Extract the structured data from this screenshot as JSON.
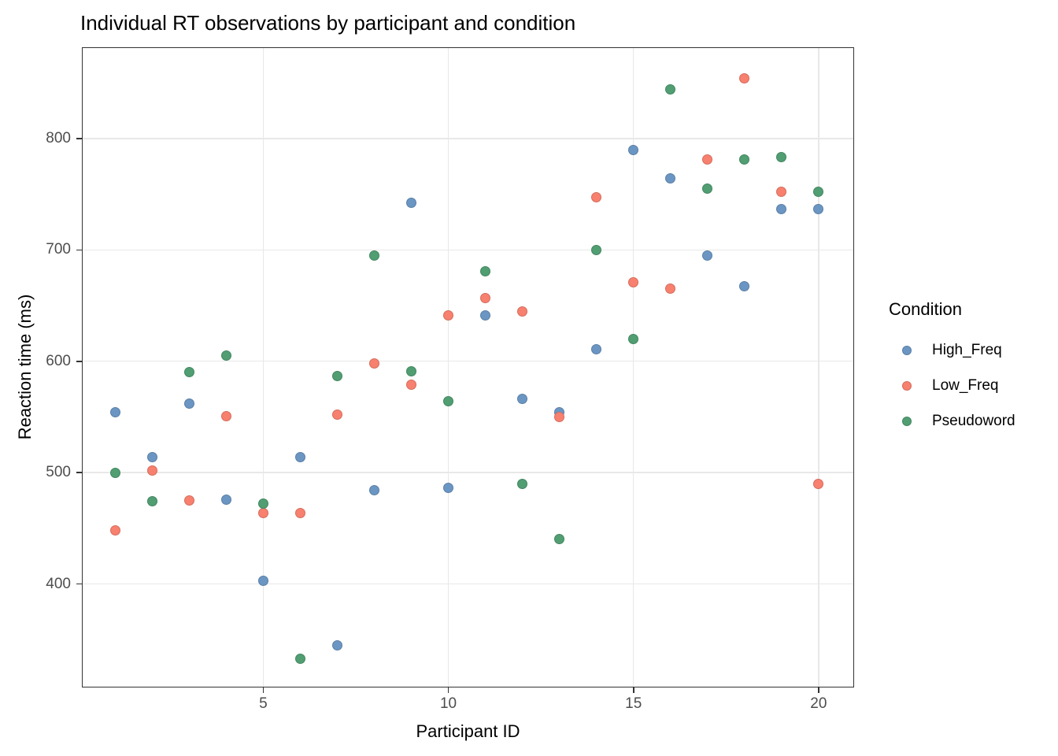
{
  "title": "Individual RT observations by participant and condition",
  "legend": {
    "title": "Condition"
  },
  "chart_data": {
    "type": "scatter",
    "title": "Individual RT observations by participant and condition",
    "xlabel": "Participant ID",
    "ylabel": "Reaction time (ms)",
    "xlim": [
      0.1,
      20.96
    ],
    "ylim": [
      307,
      882
    ],
    "x_ticks": [
      5,
      10,
      15,
      20
    ],
    "y_ticks": [
      400,
      500,
      600,
      700,
      800
    ],
    "grid": "major",
    "panel_background": "#ffffff",
    "gridline_color": "#e8e8e8",
    "panel_border_color": "#333333",
    "tick_label_color": "#4d4d4d",
    "legend_title": "Condition",
    "legend_position": "right",
    "x": [
      1,
      2,
      3,
      4,
      5,
      6,
      7,
      8,
      9,
      10,
      11,
      12,
      13,
      14,
      15,
      16,
      17,
      18,
      19,
      20
    ],
    "series": [
      {
        "name": "High_Freq",
        "color": "#6b96c3",
        "values": [
          554,
          514,
          562,
          476,
          403,
          514,
          345,
          484,
          742,
          486,
          641,
          566,
          554,
          611,
          790,
          764,
          695,
          667,
          737,
          737
        ]
      },
      {
        "name": "Low_Freq",
        "color": "#f8806e",
        "values": [
          448,
          502,
          475,
          551,
          464,
          464,
          552,
          598,
          579,
          641,
          657,
          645,
          550,
          747,
          671,
          665,
          781,
          854,
          752,
          490
        ]
      },
      {
        "name": "Pseudoword",
        "color": "#509e72",
        "values": [
          500,
          474,
          590,
          605,
          472,
          333,
          587,
          695,
          591,
          564,
          681,
          490,
          440,
          700,
          620,
          844,
          755,
          781,
          783,
          752
        ]
      }
    ]
  }
}
